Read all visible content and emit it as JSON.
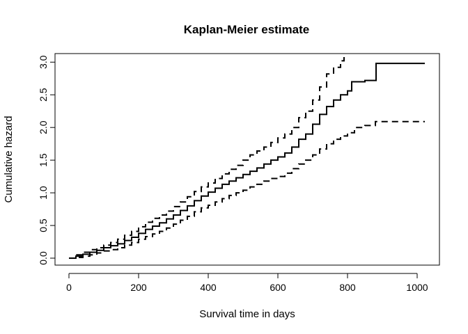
{
  "chart_data": {
    "type": "line",
    "title": "Kaplan-Meier estimate",
    "xlabel": "Survival time in days",
    "ylabel": "Cumulative hazard",
    "xlim": [
      0,
      1020
    ],
    "ylim": [
      0,
      3.0
    ],
    "xticks": [
      0,
      200,
      400,
      600,
      800,
      1000
    ],
    "yticks": [
      0.0,
      0.5,
      1.0,
      1.5,
      2.0,
      2.5,
      3.0
    ],
    "xtick_labels": [
      "0",
      "200",
      "400",
      "600",
      "800",
      "1000"
    ],
    "ytick_labels": [
      "0.0",
      "0.5",
      "1.0",
      "1.5",
      "2.0",
      "2.5",
      "3.0"
    ],
    "grid": false,
    "legend": "none",
    "series": [
      {
        "role": "estimate",
        "style": "solid",
        "x": [
          0,
          20,
          40,
          60,
          80,
          100,
          120,
          140,
          160,
          180,
          200,
          220,
          240,
          260,
          280,
          300,
          320,
          340,
          360,
          380,
          400,
          420,
          440,
          460,
          480,
          500,
          520,
          540,
          560,
          580,
          600,
          620,
          640,
          660,
          680,
          700,
          720,
          740,
          760,
          780,
          800,
          812,
          850,
          882,
          1022
        ],
        "y": [
          0.0,
          0.03,
          0.06,
          0.09,
          0.12,
          0.16,
          0.19,
          0.22,
          0.27,
          0.32,
          0.38,
          0.44,
          0.49,
          0.54,
          0.6,
          0.66,
          0.73,
          0.8,
          0.88,
          0.95,
          1.01,
          1.07,
          1.13,
          1.18,
          1.23,
          1.28,
          1.33,
          1.38,
          1.44,
          1.5,
          1.55,
          1.61,
          1.7,
          1.82,
          1.9,
          2.05,
          2.2,
          2.32,
          2.42,
          2.5,
          2.56,
          2.7,
          2.72,
          2.98,
          2.98
        ]
      },
      {
        "role": "upper confidence limit",
        "style": "dashed",
        "x": [
          0,
          20,
          40,
          60,
          80,
          100,
          120,
          140,
          160,
          180,
          200,
          220,
          240,
          260,
          280,
          300,
          320,
          340,
          360,
          380,
          400,
          420,
          440,
          460,
          480,
          500,
          520,
          540,
          560,
          580,
          600,
          620,
          640,
          660,
          680,
          700,
          720,
          740,
          760,
          780,
          790
        ],
        "y": [
          0.0,
          0.05,
          0.09,
          0.13,
          0.16,
          0.2,
          0.24,
          0.29,
          0.35,
          0.41,
          0.48,
          0.55,
          0.61,
          0.66,
          0.72,
          0.79,
          0.86,
          0.94,
          1.02,
          1.09,
          1.15,
          1.22,
          1.29,
          1.36,
          1.42,
          1.5,
          1.58,
          1.64,
          1.7,
          1.77,
          1.84,
          1.9,
          2.0,
          2.15,
          2.25,
          2.42,
          2.62,
          2.82,
          2.92,
          3.02,
          3.1
        ]
      },
      {
        "role": "lower confidence limit",
        "style": "dashed",
        "x": [
          0,
          20,
          40,
          60,
          80,
          100,
          120,
          140,
          160,
          180,
          200,
          220,
          240,
          260,
          280,
          300,
          320,
          340,
          360,
          380,
          400,
          420,
          440,
          460,
          480,
          500,
          520,
          540,
          560,
          580,
          600,
          620,
          640,
          660,
          680,
          700,
          720,
          740,
          760,
          780,
          800,
          820,
          850,
          880,
          1022
        ],
        "y": [
          0.0,
          0.01,
          0.03,
          0.05,
          0.08,
          0.11,
          0.13,
          0.16,
          0.2,
          0.24,
          0.29,
          0.33,
          0.37,
          0.41,
          0.46,
          0.52,
          0.58,
          0.64,
          0.71,
          0.77,
          0.81,
          0.86,
          0.91,
          0.96,
          1.0,
          1.04,
          1.09,
          1.13,
          1.18,
          1.22,
          1.25,
          1.3,
          1.37,
          1.44,
          1.5,
          1.58,
          1.67,
          1.75,
          1.82,
          1.87,
          1.92,
          2.0,
          2.03,
          2.09,
          2.09
        ]
      }
    ]
  }
}
